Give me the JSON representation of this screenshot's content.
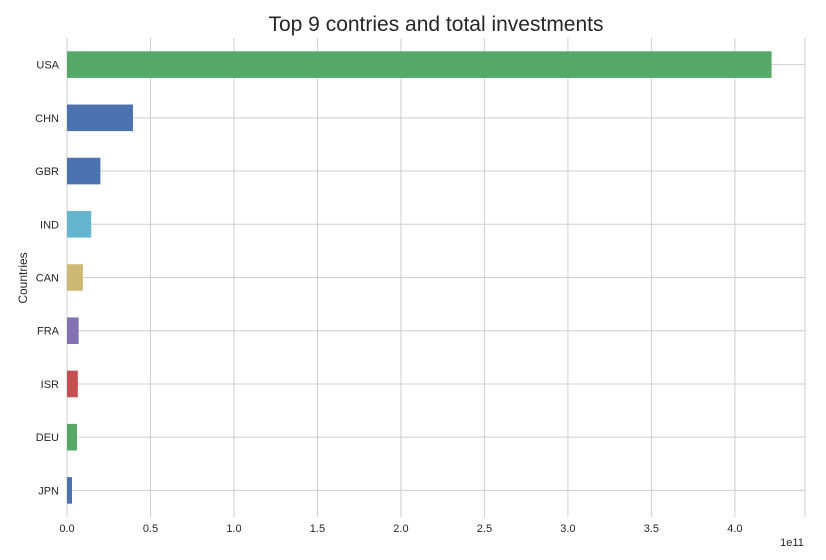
{
  "chart_data": {
    "type": "bar",
    "orientation": "horizontal",
    "title": "Top 9 contries and total investments",
    "ylabel": "Countries",
    "xlabel": "",
    "offset_label": "1e11",
    "categories": [
      "JPN",
      "DEU",
      "ISR",
      "FRA",
      "CAN",
      "IND",
      "GBR",
      "CHN",
      "USA"
    ],
    "values": [
      0.03,
      0.06,
      0.065,
      0.07,
      0.095,
      0.145,
      0.2,
      0.395,
      4.22
    ],
    "value_unit_multiplier": "1e11",
    "colors": [
      "#4c72b0",
      "#55a868",
      "#c44e52",
      "#8172b2",
      "#ccb974",
      "#64b5cd",
      "#4c72b0",
      "#4c72b0",
      "#55a868"
    ],
    "xlim": [
      0,
      4.42
    ],
    "xticks": [
      0.0,
      0.5,
      1.0,
      1.5,
      2.0,
      2.5,
      3.0,
      3.5,
      4.0
    ],
    "xtick_labels": [
      "0.0",
      "0.5",
      "1.0",
      "1.5",
      "2.0",
      "2.5",
      "3.0",
      "3.5",
      "4.0"
    ],
    "grid": true,
    "legend": "none"
  }
}
